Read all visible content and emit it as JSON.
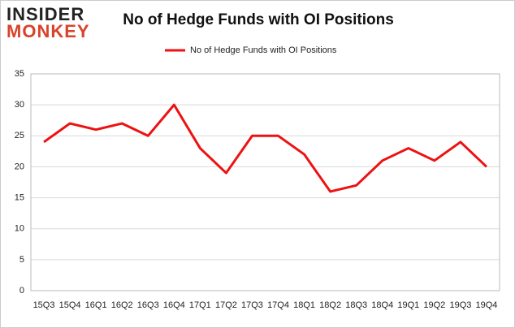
{
  "logo": {
    "line1": "INSIDER",
    "line2": "MONKEY"
  },
  "chart_data": {
    "type": "line",
    "title": "No of Hedge Funds with OI Positions",
    "categories": [
      "15Q3",
      "15Q4",
      "16Q1",
      "16Q2",
      "16Q3",
      "16Q4",
      "17Q1",
      "17Q2",
      "17Q3",
      "17Q4",
      "18Q1",
      "18Q2",
      "18Q3",
      "18Q4",
      "19Q1",
      "19Q2",
      "19Q3",
      "19Q4"
    ],
    "series": [
      {
        "name": "No of Hedge Funds with OI Positions",
        "color": "#ee1111",
        "values": [
          24,
          27,
          26,
          27,
          25,
          30,
          23,
          19,
          25,
          25,
          22,
          16,
          17,
          21,
          23,
          21,
          24,
          20
        ]
      }
    ],
    "ylim": [
      0,
      35
    ],
    "yticks": [
      0,
      5,
      10,
      15,
      20,
      25,
      30,
      35
    ],
    "grid": true,
    "legend": "top"
  }
}
